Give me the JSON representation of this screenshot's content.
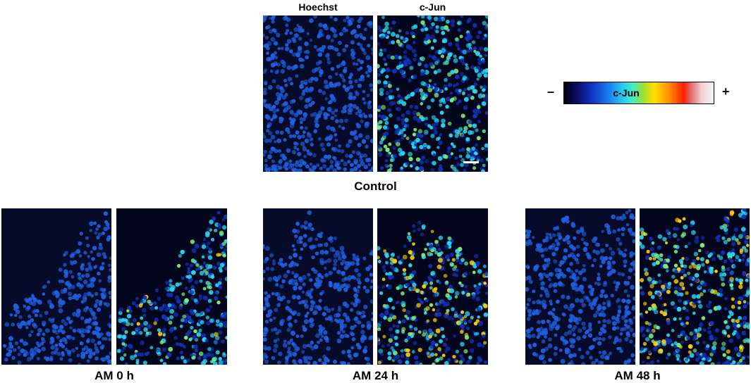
{
  "columns": {
    "hoechst": "Hoechst",
    "cjun": "c-Jun"
  },
  "conditions": {
    "control": "Control",
    "am0": "AM 0 h",
    "am24": "AM 24 h",
    "am48": "AM 48 h"
  },
  "colorbar": {
    "label": "c-Jun",
    "minus": "–",
    "plus": "+"
  },
  "colors": {
    "hoechst_bg": "#070b2a",
    "hoechst_nucleus": "#1f5fe0",
    "cjun_bg": "#04061e",
    "cjun_low": "#1232b8",
    "cjun_mid": "#29d6f0",
    "cjun_high": "#ffd000"
  }
}
